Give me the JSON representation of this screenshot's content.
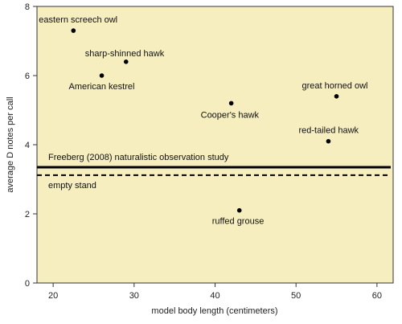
{
  "chart_data": {
    "type": "scatter",
    "xlabel": "model body length (centimeters)",
    "ylabel": "average D notes per call",
    "xlim": [
      18,
      62
    ],
    "ylim": [
      0,
      8
    ],
    "x_ticks": [
      20,
      30,
      40,
      50,
      60
    ],
    "y_ticks": [
      0,
      2,
      4,
      6,
      8
    ],
    "grid": false,
    "background_color": "#f6eebf",
    "points": [
      {
        "label": "eastern screech owl",
        "x": 22.5,
        "y": 7.3
      },
      {
        "label": "sharp-shinned hawk",
        "x": 29,
        "y": 6.4
      },
      {
        "label": "American kestrel",
        "x": 26,
        "y": 6.0
      },
      {
        "label": "Cooper's hawk",
        "x": 42,
        "y": 5.2
      },
      {
        "label": "great horned owl",
        "x": 55,
        "y": 5.4
      },
      {
        "label": "red-tailed hawk",
        "x": 54,
        "y": 4.1
      },
      {
        "label": "ruffed grouse",
        "x": 43,
        "y": 2.1
      }
    ],
    "reference_lines": [
      {
        "label": "Freeberg (2008) naturalistic observation study",
        "y": 3.35,
        "style": "solid"
      },
      {
        "label": "empty stand",
        "y": 3.12,
        "style": "dashed"
      }
    ]
  }
}
